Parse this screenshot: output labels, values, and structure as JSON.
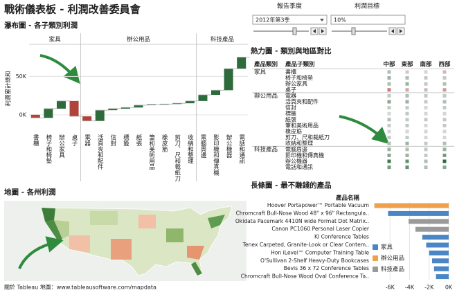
{
  "header": {
    "title": "戰術儀表板 - 利潤改善委員會"
  },
  "controls": [
    {
      "label": "報告季度",
      "value": "2012年第3季"
    },
    {
      "label": "利潤目標",
      "value": "10%"
    }
  ],
  "map": {
    "title": "地圖 - 各州利潤",
    "credit": "關於 Tableau 地圖：www.tableausoftware.com/mapdata"
  },
  "chart_data": [
    {
      "type": "waterfall",
      "title": "瀑布圖 - 各子類別利潤",
      "y_label": "利潤累計總和",
      "groups": [
        {
          "name": "家具",
          "categories": [
            "書櫃",
            "椅子和椅墊",
            "辦公家具",
            "桌子"
          ],
          "values": [
            -4000,
            12000,
            10000,
            -20000
          ]
        },
        {
          "name": "辦公用品",
          "categories": [
            "電器",
            "活頁夾和配件",
            "信封",
            "標籤",
            "紙張",
            "筆和美術用品",
            "橡皮筋",
            "剪刀、尺和裁紙刀",
            "收納和整理"
          ],
          "values": [
            -6000,
            14000,
            2000,
            1500,
            3000,
            1000,
            500,
            1000,
            3000
          ]
        },
        {
          "name": "科技產品",
          "categories": [
            "電腦周邊",
            "影印機和傳真機",
            "辦公機器",
            "電話和通訊"
          ],
          "values": [
            8000,
            6000,
            28000,
            15000
          ]
        }
      ],
      "positive_color": "#2d6b3c",
      "negative_color": "#b0443a",
      "ylim": [
        -20000,
        90000
      ],
      "yticks": [
        {
          "value": 0,
          "label": "0K"
        },
        {
          "value": 50000,
          "label": "50K"
        }
      ],
      "grid": true
    },
    {
      "type": "heatmap",
      "title": "熱力圖 - 類別與地區對比",
      "row_header": "產品類別",
      "sub_header": "產品子類別",
      "columns": [
        "中部",
        "東部",
        "南部",
        "西部"
      ],
      "groups": [
        {
          "name": "家具",
          "rows": [
            "書櫃",
            "椅子和椅墊",
            "辦公家具",
            "桌子"
          ],
          "values": [
            [
              2000,
              -1000,
              0,
              -2000
            ],
            [
              3000,
              2000,
              1000,
              1000
            ],
            [
              2000,
              3000,
              1000,
              2000
            ],
            [
              -6000,
              -3000,
              -2000,
              -4000
            ]
          ]
        },
        {
          "name": "辦公用品",
          "rows": [
            "電器",
            "活頁夾和配件",
            "信封",
            "標籤",
            "紙張",
            "筆和美術用品",
            "橡皮筋",
            "剪刀、尺和裁紙刀",
            "收納和整理"
          ],
          "values": [
            [
              1000,
              2000,
              1000,
              1000
            ],
            [
              4000,
              3000,
              1000,
              2000
            ],
            [
              1000,
              1000,
              0,
              1000
            ],
            [
              0,
              1000,
              0,
              0
            ],
            [
              2000,
              1000,
              1000,
              1000
            ],
            [
              1000,
              1000,
              0,
              1000
            ],
            [
              0,
              0,
              0,
              0
            ],
            [
              1000,
              1000,
              0,
              0
            ],
            [
              2000,
              3000,
              1000,
              2000
            ]
          ]
        },
        {
          "name": "科技產品",
          "rows": [
            "電腦周邊",
            "影印機和傳真機",
            "辦公機器",
            "電話和通訊"
          ],
          "values": [
            [
              3000,
              2000,
              1000,
              3000
            ],
            [
              4000,
              3000,
              1000,
              5000
            ],
            [
              8000,
              6000,
              2000,
              9000
            ],
            [
              5000,
              6000,
              2000,
              4000
            ]
          ]
        }
      ],
      "positive_color": "#2d6b3c",
      "negative_color": "#c0504d",
      "neutral_color": "#d6d6d6"
    },
    {
      "type": "bar",
      "orientation": "horizontal",
      "title": "長條圖 - 最不賺錢的產品",
      "category_header": "產品名稱",
      "categories": [
        "Hoover Portapower™ Portable Vacuum",
        "Chromcraft Bull-Nose Wood 48\" x 96\" Rectangula..",
        "Okidata Pacemark 4410N wide Format Dot Matrix..",
        "Canon PC1060 Personal Laser Copier",
        "KI Conference Tables",
        "Tenex Carpeted, Granite-Look or Clear Contem..",
        "Hon iLevel™ Computer Training Table",
        "O'Sullivan 2-Shelf Heavy-Duty Bookcases",
        "Bevis 36 x 72 Conference Tables",
        "Chromcraft Bull-Nose Wood Oval Conference Ta.."
      ],
      "series": [
        {
          "name": "家具",
          "color": "#4a86c5",
          "values": [
            null,
            -6200,
            null,
            null,
            -2700,
            -2300,
            -2000,
            -1700,
            -1500,
            -1300
          ]
        },
        {
          "name": "辦公用品",
          "color": "#f0a04b",
          "values": [
            -7600,
            null,
            null,
            null,
            null,
            null,
            null,
            null,
            null,
            null
          ]
        },
        {
          "name": "科技產品",
          "color": "#9a9a9a",
          "values": [
            null,
            null,
            -4100,
            -3400,
            null,
            null,
            null,
            null,
            null,
            null
          ]
        }
      ],
      "xlim": [
        -8000,
        0
      ],
      "xticks": [
        {
          "value": -6000,
          "label": "-6K"
        },
        {
          "value": -4000,
          "label": "-4K"
        },
        {
          "value": -2000,
          "label": "-2K"
        },
        {
          "value": 0,
          "label": "0K"
        }
      ],
      "grid": true
    }
  ]
}
